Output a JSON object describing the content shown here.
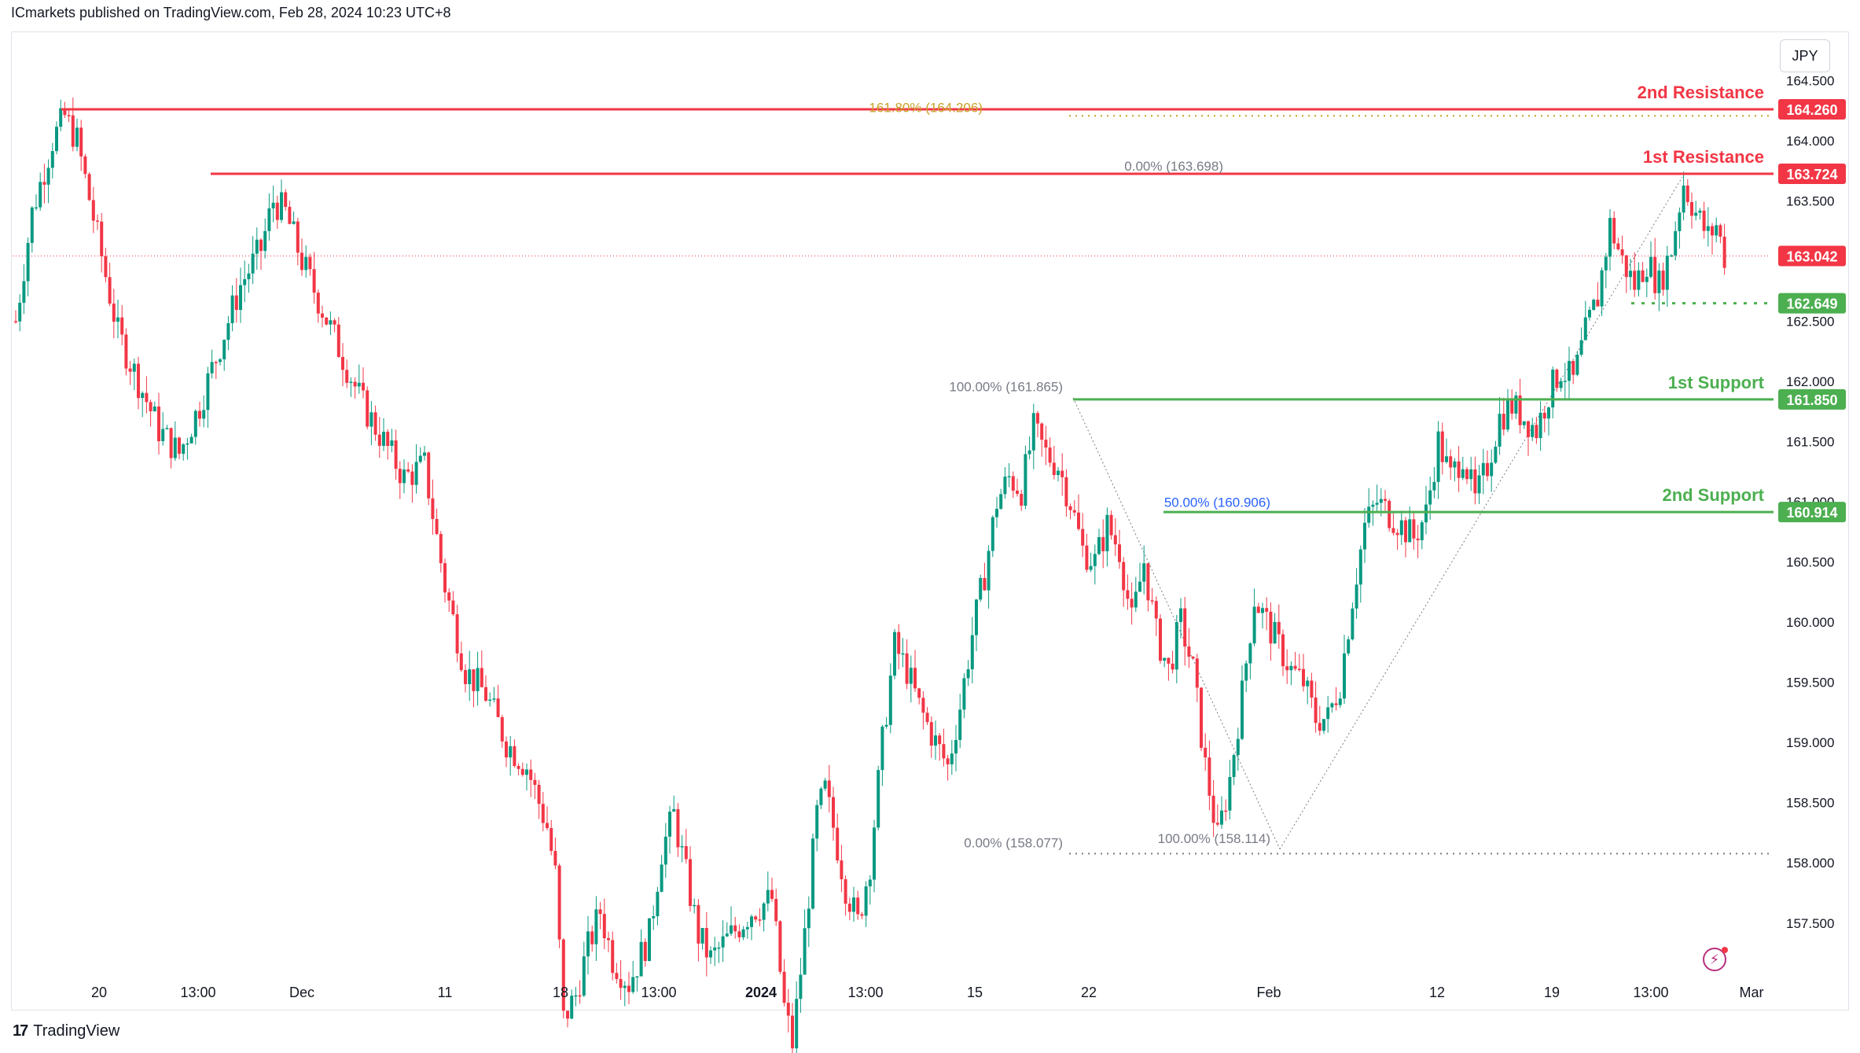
{
  "header": {
    "publisher_text": "ICmarkets published on TradingView.com, Feb 28, 2024 10:23 UTC+8"
  },
  "currency_button": {
    "label": "JPY"
  },
  "footer": {
    "logo_glyph": "17",
    "brand": "TradingView"
  },
  "colors": {
    "up": "#089981",
    "down": "#f23645",
    "resistance": "#f23645",
    "support": "#4caf50",
    "fib_gold": "#c9a227",
    "fib_blue": "#2962ff",
    "fib_gray": "#787b86"
  },
  "chart_data": {
    "type": "candlestick",
    "symbol_currency": "JPY",
    "ylim": [
      157.1,
      164.75
    ],
    "y_ticks": [
      "164.500",
      "164.000",
      "163.500",
      "162.500",
      "162.000",
      "161.500",
      "161.000",
      "160.500",
      "160.000",
      "159.500",
      "159.000",
      "158.500",
      "158.000",
      "157.500"
    ],
    "x_ticks": [
      "20",
      "13:00",
      "Dec",
      "11",
      "18",
      "13:00",
      "2024",
      "13:00",
      "15",
      "22",
      "Feb",
      "12",
      "19",
      "13:00",
      "Mar"
    ],
    "last_price": "163.042",
    "price_labels": [
      {
        "text": "164.260",
        "kind": "resistance"
      },
      {
        "text": "163.724",
        "kind": "resistance"
      },
      {
        "text": "163.042",
        "kind": "last"
      },
      {
        "text": "162.649",
        "kind": "support"
      },
      {
        "text": "161.850",
        "kind": "support"
      },
      {
        "text": "160.914",
        "kind": "support"
      }
    ],
    "levels": [
      {
        "name": "2nd Resistance",
        "value": 164.26,
        "color": "#f23645"
      },
      {
        "name": "1st Resistance",
        "value": 163.724,
        "color": "#f23645"
      },
      {
        "name": "1st Support",
        "value": 161.85,
        "color": "#4caf50"
      },
      {
        "name": "2nd Support",
        "value": 160.914,
        "color": "#4caf50"
      }
    ],
    "dotted_levels": [
      {
        "value": 162.649,
        "color": "#4caf50"
      },
      {
        "value": 164.206,
        "color": "#c9a227"
      },
      {
        "value": 158.077,
        "color": "#787b86"
      }
    ],
    "fib_labels": [
      {
        "text": "161.80% (164.206)",
        "value": 164.206,
        "color": "#c9a227"
      },
      {
        "text": "0.00% (163.698)",
        "value": 163.698,
        "color": "#787b86"
      },
      {
        "text": "100.00% (161.865)",
        "value": 161.865,
        "color": "#787b86"
      },
      {
        "text": "50.00% (160.906)",
        "value": 160.906,
        "color": "#2962ff"
      },
      {
        "text": "0.00% (158.077)",
        "value": 158.077,
        "color": "#787b86"
      },
      {
        "text": "100.00% (158.114)",
        "value": 158.114,
        "color": "#787b86"
      }
    ],
    "path_keypoints": [
      [
        0,
        162.5
      ],
      [
        4,
        163.4
      ],
      [
        9,
        164.0
      ],
      [
        12,
        164.2
      ],
      [
        15,
        164.0
      ],
      [
        20,
        163.2
      ],
      [
        25,
        162.4
      ],
      [
        30,
        162.0
      ],
      [
        35,
        161.6
      ],
      [
        40,
        161.4
      ],
      [
        45,
        161.8
      ],
      [
        50,
        162.3
      ],
      [
        55,
        162.8
      ],
      [
        60,
        163.1
      ],
      [
        63,
        163.5
      ],
      [
        66,
        163.4
      ],
      [
        70,
        163.0
      ],
      [
        75,
        162.6
      ],
      [
        80,
        162.2
      ],
      [
        85,
        161.8
      ],
      [
        90,
        161.5
      ],
      [
        95,
        161.2
      ],
      [
        100,
        161.3
      ],
      [
        105,
        160.3
      ],
      [
        110,
        159.6
      ],
      [
        115,
        159.4
      ],
      [
        120,
        159.0
      ],
      [
        125,
        158.8
      ],
      [
        130,
        158.3
      ],
      [
        132,
        157.9
      ],
      [
        134,
        156.7
      ],
      [
        137,
        156.9
      ],
      [
        140,
        157.3
      ],
      [
        143,
        157.6
      ],
      [
        146,
        157.2
      ],
      [
        150,
        157.0
      ],
      [
        155,
        157.4
      ],
      [
        158,
        158.1
      ],
      [
        161,
        158.4
      ],
      [
        164,
        157.9
      ],
      [
        167,
        157.4
      ],
      [
        170,
        157.2
      ],
      [
        175,
        157.4
      ],
      [
        180,
        157.6
      ],
      [
        185,
        157.7
      ],
      [
        188,
        156.8
      ],
      [
        190,
        156.5
      ],
      [
        193,
        157.4
      ],
      [
        196,
        158.4
      ],
      [
        198,
        158.6
      ],
      [
        200,
        158.3
      ],
      [
        203,
        157.8
      ],
      [
        206,
        157.5
      ],
      [
        209,
        158.0
      ],
      [
        212,
        159.0
      ],
      [
        215,
        159.8
      ],
      [
        218,
        159.6
      ],
      [
        221,
        159.3
      ],
      [
        225,
        159.0
      ],
      [
        228,
        158.8
      ],
      [
        231,
        159.3
      ],
      [
        234,
        159.9
      ],
      [
        237,
        160.4
      ],
      [
        240,
        161.0
      ],
      [
        243,
        161.2
      ],
      [
        246,
        161.1
      ],
      [
        249,
        161.6
      ],
      [
        252,
        161.4
      ],
      [
        255,
        161.3
      ],
      [
        258,
        161.0
      ],
      [
        261,
        160.6
      ],
      [
        264,
        160.5
      ],
      [
        267,
        160.8
      ],
      [
        270,
        160.6
      ],
      [
        273,
        160.0
      ],
      [
        276,
        160.5
      ],
      [
        279,
        159.9
      ],
      [
        282,
        159.6
      ],
      [
        285,
        160.0
      ],
      [
        288,
        159.6
      ],
      [
        291,
        158.8
      ],
      [
        294,
        158.2
      ],
      [
        297,
        158.7
      ],
      [
        300,
        159.4
      ],
      [
        303,
        160.2
      ],
      [
        306,
        160.0
      ],
      [
        309,
        159.8
      ],
      [
        312,
        159.6
      ],
      [
        315,
        159.5
      ],
      [
        318,
        159.2
      ],
      [
        321,
        159.2
      ],
      [
        324,
        159.5
      ],
      [
        327,
        160.2
      ],
      [
        330,
        160.8
      ],
      [
        333,
        161.0
      ],
      [
        336,
        160.9
      ],
      [
        339,
        160.8
      ],
      [
        342,
        160.7
      ],
      [
        345,
        160.9
      ],
      [
        348,
        161.5
      ],
      [
        351,
        161.2
      ],
      [
        354,
        161.4
      ],
      [
        357,
        161.0
      ],
      [
        360,
        161.3
      ],
      [
        363,
        161.7
      ],
      [
        366,
        161.8
      ],
      [
        369,
        161.7
      ],
      [
        372,
        161.6
      ],
      [
        375,
        161.9
      ],
      [
        378,
        162.1
      ],
      [
        381,
        162.0
      ],
      [
        384,
        162.4
      ],
      [
        387,
        162.7
      ],
      [
        390,
        163.3
      ],
      [
        393,
        163.0
      ],
      [
        396,
        162.8
      ],
      [
        399,
        163.0
      ],
      [
        402,
        162.8
      ],
      [
        405,
        163.1
      ],
      [
        408,
        163.65
      ],
      [
        411,
        163.4
      ],
      [
        414,
        163.2
      ],
      [
        416,
        163.3
      ],
      [
        418,
        163.04
      ]
    ]
  }
}
